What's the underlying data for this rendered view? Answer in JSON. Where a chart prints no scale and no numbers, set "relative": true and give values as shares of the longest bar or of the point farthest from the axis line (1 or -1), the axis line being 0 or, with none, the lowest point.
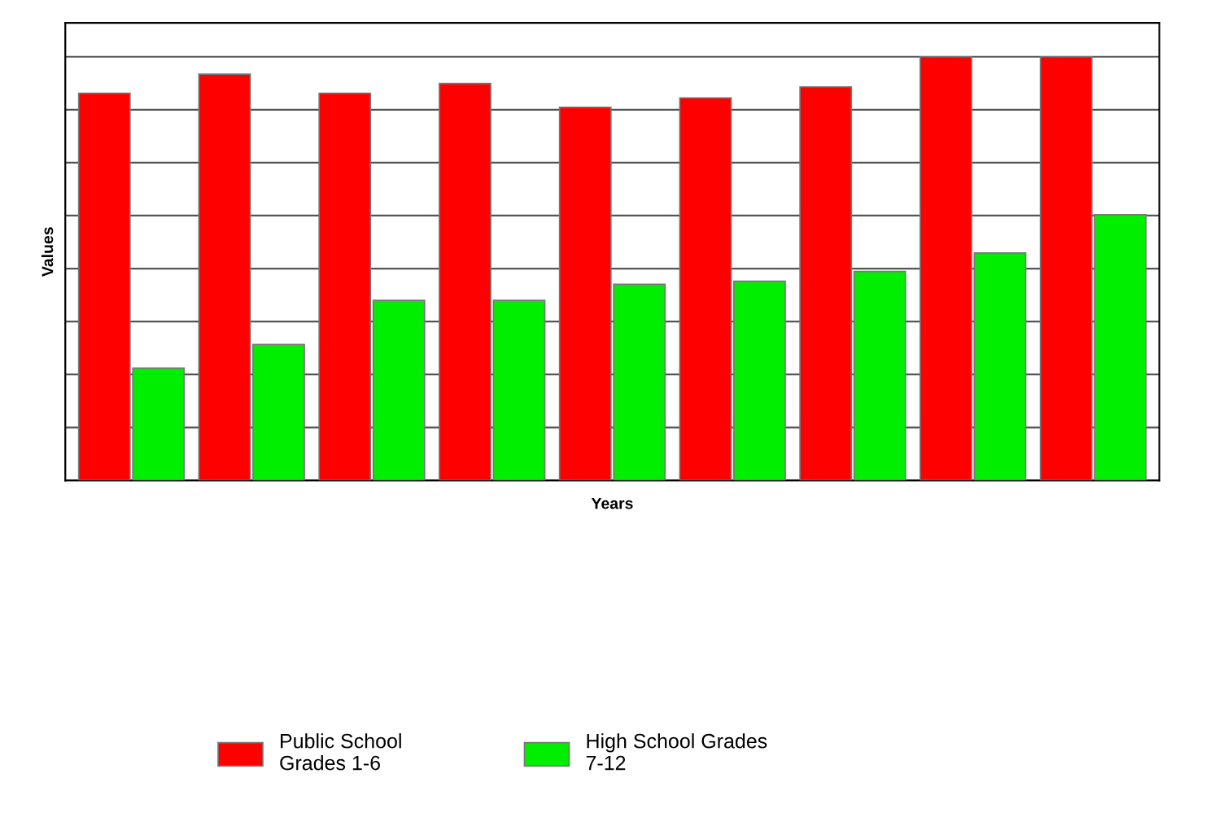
{
  "chart_data": {
    "type": "bar",
    "relative": true,
    "xlabel": "Years",
    "ylabel": "Values",
    "categories": [
      null,
      null,
      null,
      null,
      null,
      null,
      null,
      null,
      null
    ],
    "series": [
      {
        "name": "Public School\nGrades 1-6",
        "color": "#ff0000",
        "values": [
          0.914,
          0.959,
          0.914,
          0.937,
          0.881,
          0.903,
          0.929,
          1,
          1
        ]
      },
      {
        "name": "High School Grades\n7-12",
        "color": "#00ee00",
        "values": [
          0.265,
          0.321,
          0.425,
          0.425,
          0.463,
          0.47,
          0.493,
          0.537,
          0.627
        ]
      }
    ],
    "grid": "y",
    "legend": "bottom"
  }
}
